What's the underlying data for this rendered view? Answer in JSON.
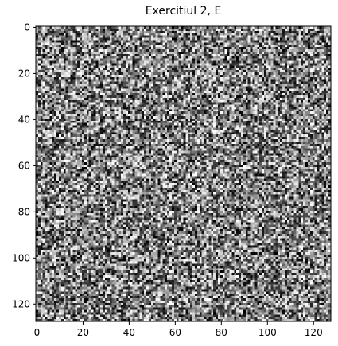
{
  "chart_data": {
    "type": "heatmap",
    "title": "Exercitiul 2, E",
    "colormap": "gray",
    "image_size": 128,
    "xlim": [
      -0.5,
      127.5
    ],
    "ylim": [
      127.5,
      -0.5
    ],
    "y_inverted": true,
    "x_ticks": [
      0,
      20,
      40,
      60,
      80,
      100,
      120
    ],
    "y_ticks": [
      0,
      20,
      40,
      60,
      80,
      100,
      120
    ],
    "x_tick_labels": [
      "0",
      "20",
      "40",
      "60",
      "80",
      "100",
      "120"
    ],
    "y_tick_labels": [
      "0",
      "20",
      "40",
      "60",
      "80",
      "100",
      "120"
    ],
    "content": "random noise image",
    "grid": false
  }
}
